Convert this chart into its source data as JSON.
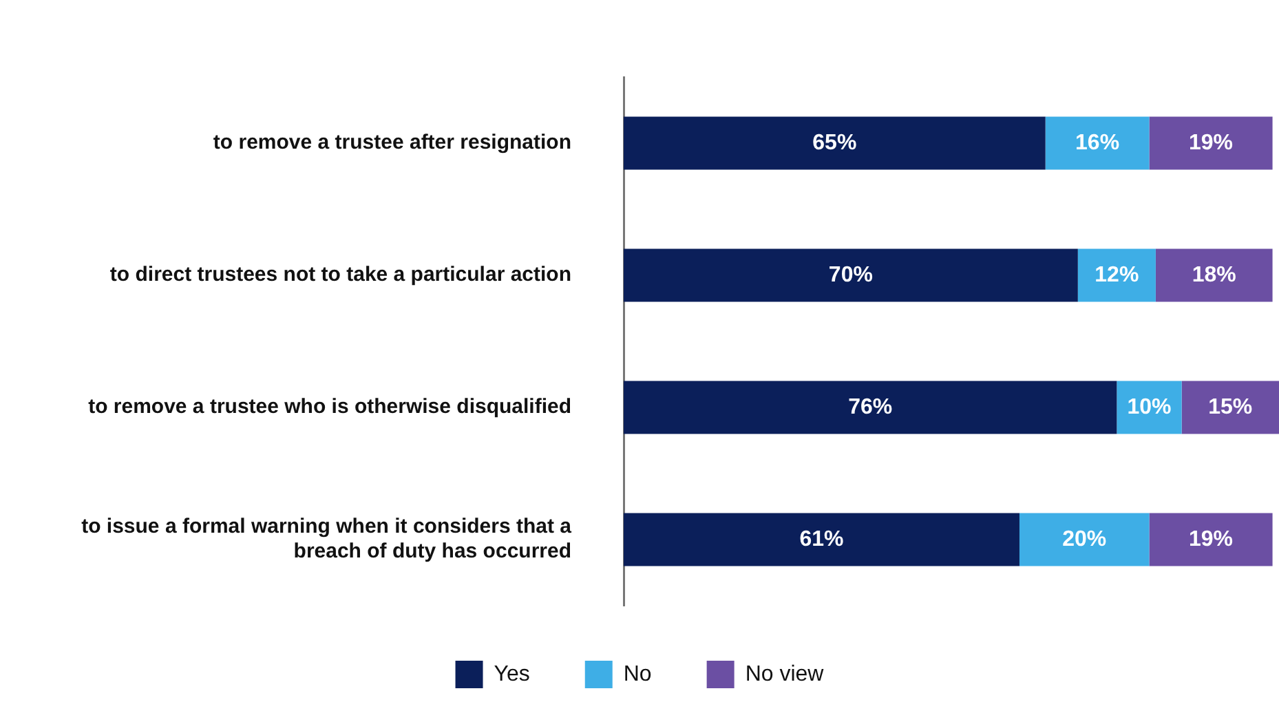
{
  "chart_data": {
    "type": "bar",
    "orientation": "horizontal",
    "stacked": true,
    "legend": "bottom",
    "categories": [
      "to remove a trustee after resignation",
      "to direct trustees not to take a particular action",
      "to remove a trustee who is otherwise disqualified",
      "to issue a formal warning when it considers that a breach of duty has occurred"
    ],
    "series": [
      {
        "name": "Yes",
        "color": "#0b1f5a",
        "values": [
          65,
          70,
          76,
          61
        ],
        "value_labels": [
          "65%",
          "70%",
          "76%",
          "61%"
        ]
      },
      {
        "name": "No",
        "color": "#3eaee6",
        "values": [
          16,
          12,
          10,
          20
        ],
        "value_labels": [
          "16%",
          "12%",
          "10%",
          "20%"
        ]
      },
      {
        "name": "No view",
        "color": "#6b4fa3",
        "values": [
          19,
          18,
          15,
          19
        ],
        "value_labels": [
          "19%",
          "18%",
          "15%",
          "19%"
        ]
      }
    ]
  }
}
